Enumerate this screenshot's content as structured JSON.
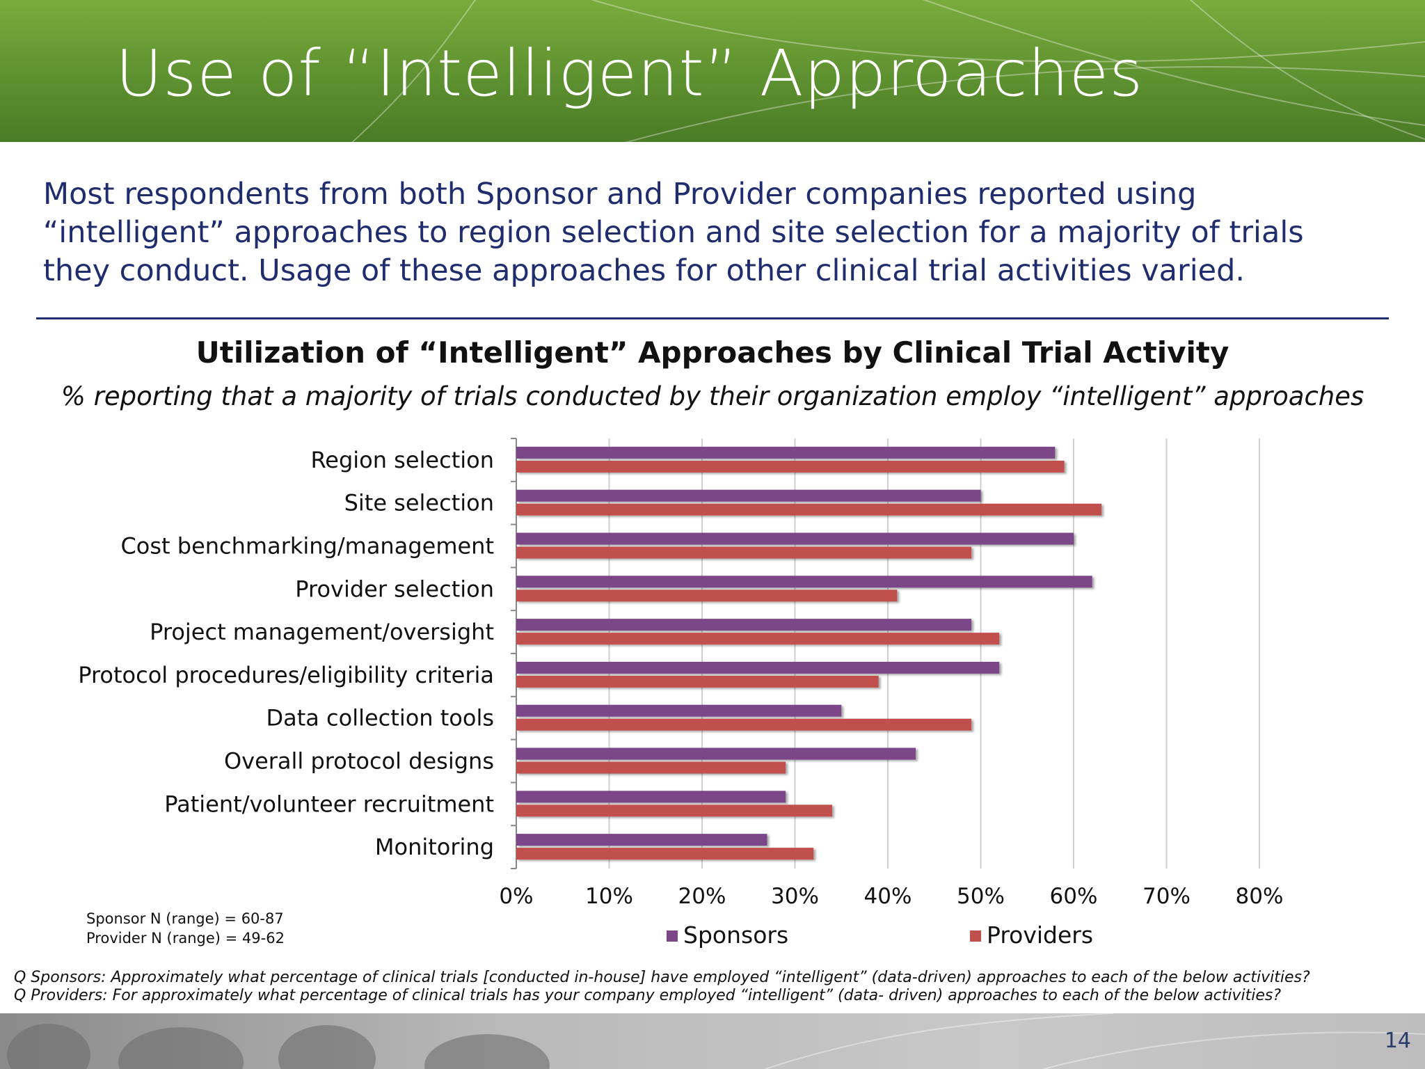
{
  "slide": {
    "title": "Use of “Intelligent” Approaches",
    "summary": "Most respondents from both Sponsor and Provider companies reported using “intelligent” approaches to region selection and site selection for a majority of trials they conduct. Usage of these approaches for other clinical trial activities varied.",
    "page_number": "14"
  },
  "notes": {
    "sponsor_n": "Sponsor N (range) = 60-87",
    "provider_n": "Provider N (range) = 49-62",
    "q_sponsors": "Q Sponsors: Approximately what percentage of clinical trials [conducted in-house] have employed “intelligent” (data-driven) approaches to each of the below activities?",
    "q_providers": "Q Providers: For approximately what percentage of clinical trials has your company employed “intelligent” (data- driven) approaches to each of the below activities?"
  },
  "colors": {
    "header_green": "#5e9130",
    "summary_text": "#1f2d6e",
    "sponsors": "#7b4789",
    "providers": "#c0504d",
    "grid": "#d0d0d0"
  },
  "chart_data": {
    "type": "bar",
    "orientation": "horizontal",
    "title": "Utilization of “Intelligent” Approaches by Clinical Trial Activity",
    "subtitle": "% reporting that a majority of trials conducted by their organization employ “intelligent” approaches",
    "categories": [
      "Region selection",
      "Site selection",
      "Cost benchmarking/management",
      "Provider selection",
      "Project management/oversight",
      "Protocol procedures/eligibility criteria",
      "Data collection tools",
      "Overall protocol designs",
      "Patient/volunteer recruitment",
      "Monitoring"
    ],
    "series": [
      {
        "name": "Sponsors",
        "color": "#7b4789",
        "values": [
          58,
          50,
          60,
          62,
          49,
          52,
          35,
          43,
          29,
          27
        ]
      },
      {
        "name": "Providers",
        "color": "#c0504d",
        "values": [
          59,
          63,
          49,
          41,
          52,
          39,
          49,
          29,
          34,
          32
        ]
      }
    ],
    "xlim": [
      0,
      80
    ],
    "xticks": [
      0,
      10,
      20,
      30,
      40,
      50,
      60,
      70,
      80
    ],
    "xtick_labels": [
      "0%",
      "10%",
      "20%",
      "30%",
      "40%",
      "50%",
      "60%",
      "70%",
      "80%"
    ],
    "grid": true,
    "legend": "bottom"
  }
}
